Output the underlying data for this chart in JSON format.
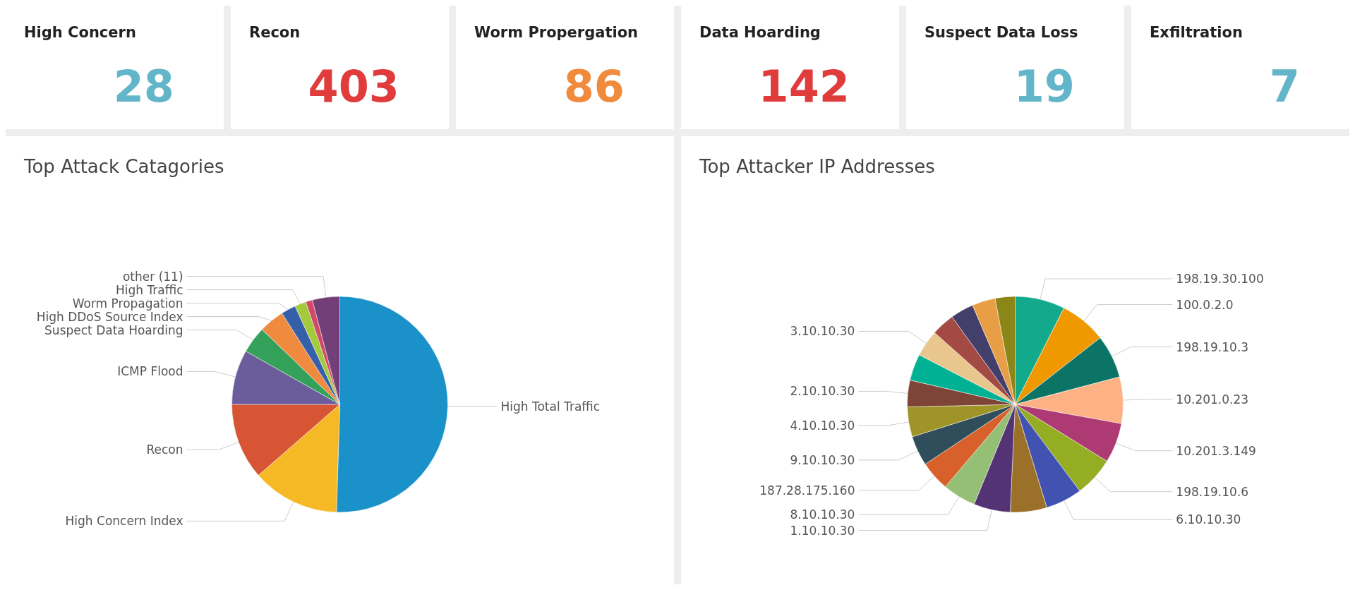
{
  "chart_data": [
    {
      "type": "other",
      "title": "High Concern",
      "annotations": [
        "28"
      ]
    },
    {
      "type": "other",
      "title": "Recon",
      "annotations": [
        "403"
      ]
    },
    {
      "type": "other",
      "title": "Worm Propergation",
      "annotations": [
        "86"
      ]
    },
    {
      "type": "other",
      "title": "Data Hoarding",
      "annotations": [
        "142"
      ]
    },
    {
      "type": "other",
      "title": "Suspect Data Loss",
      "annotations": [
        "19"
      ]
    },
    {
      "type": "other",
      "title": "Exfiltration",
      "annotations": [
        "7"
      ]
    },
    {
      "type": "pie",
      "title": "Top Attack Catagories",
      "categories": [
        "High Total Traffic",
        "High Concern Index",
        "Recon",
        "ICMP Flood",
        "Suspect Data Hoarding",
        "High DDoS Source Index",
        "Worm Propagation",
        "High Traffic",
        null,
        "other (11)"
      ],
      "values": [
        50.5,
        13.1,
        11.4,
        8.2,
        4.0,
        3.8,
        2.2,
        1.7,
        1.0,
        4.1
      ],
      "colors": [
        "#1a92c9",
        "#f6b926",
        "#d75535",
        "#6b5c9c",
        "#33a159",
        "#ef8a3f",
        "#355fa8",
        "#a3ca3c",
        "#d24a6a",
        "#723f78"
      ]
    },
    {
      "type": "pie",
      "title": "Top Attacker IP Addresses",
      "categories": [
        "198.19.30.100",
        "100.0.2.0",
        "198.19.10.3",
        "10.201.0.23",
        "10.201.3.149",
        "198.19.10.6",
        "6.10.10.30",
        null,
        "1.10.10.30",
        "8.10.10.30",
        "187.28.175.160",
        "9.10.10.30",
        "4.10.10.30",
        "2.10.10.30",
        null,
        "3.10.10.30",
        null,
        null,
        null,
        null
      ],
      "values": [
        7.5,
        7,
        6.5,
        7,
        6,
        6,
        5.5,
        5.5,
        5.5,
        5,
        4.5,
        4.5,
        4.5,
        4,
        4,
        4,
        3.5,
        3.5,
        3.5,
        3
      ],
      "colors": [
        "#13a98d",
        "#f09800",
        "#0b7466",
        "#feb185",
        "#ad3a72",
        "#95ad23",
        "#4152b0",
        "#9b712a",
        "#533374",
        "#94bf75",
        "#d8602a",
        "#2f4d5a",
        "#9f9428",
        "#7e4436",
        "#00b293",
        "#e8c68d",
        "#a34a44",
        "#42406a",
        "#e89e44",
        "#8c8618"
      ]
    }
  ]
}
